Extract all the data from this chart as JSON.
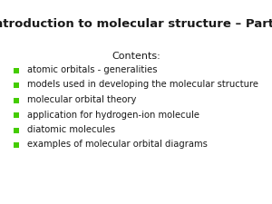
{
  "title": "Introduction to molecular structure – Part I",
  "contents_label": "Contents:",
  "bullet_items": [
    "atomic orbitals - generalities",
    "models used in developing the molecular structure",
    "molecular orbital theory",
    "application for hydrogen-ion molecule",
    "diatomic molecules",
    "examples of molecular orbital diagrams"
  ],
  "background_color": "#ffffff",
  "title_color": "#1a1a1a",
  "text_color": "#1a1a1a",
  "bullet_color": "#44cc00",
  "title_fontsize": 9.5,
  "contents_fontsize": 8.0,
  "bullet_fontsize": 7.2,
  "bullet_marker_fontsize": 6.5,
  "title_font_weight": "bold",
  "title_font_family": "sans-serif",
  "body_font_family": "sans-serif"
}
